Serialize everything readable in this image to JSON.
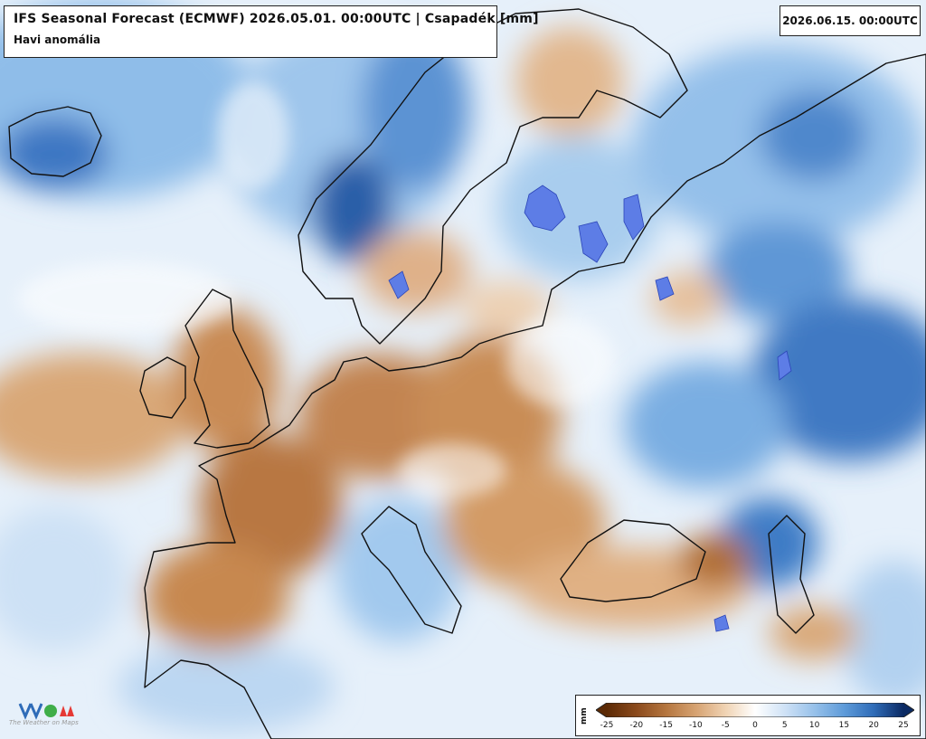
{
  "title": "IFS Seasonal Forecast (ECMWF) 2026.05.01. 00:00UTC | Csapadék [mm]",
  "subtitle": "Havi anomália",
  "valid_date": "2026.06.15. 00:00UTC",
  "legend": {
    "unit": "mm",
    "ticks": [
      "-25",
      "-20",
      "-15",
      "-10",
      "-5",
      "0",
      "5",
      "10",
      "15",
      "20",
      "25"
    ],
    "colors": [
      "#5c2a05",
      "#8b4a1c",
      "#b5763f",
      "#d6a271",
      "#f0d3b3",
      "#ffffff",
      "#cfe2f6",
      "#97c1ea",
      "#5e9bd9",
      "#2f6cb8",
      "#0b2a63"
    ]
  },
  "logo": {
    "text": "The Weather on Maps"
  }
}
